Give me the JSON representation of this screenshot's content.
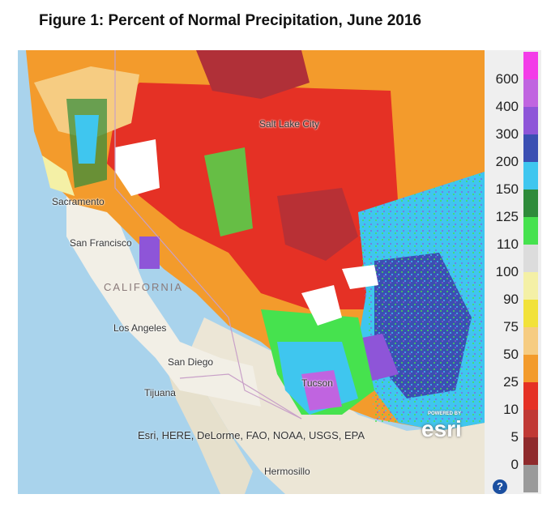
{
  "title": "Figure 1: Percent of Normal Precipitation, June 2016",
  "legend": {
    "ticks": [
      "600",
      "400",
      "300",
      "200",
      "150",
      "125",
      "110",
      "100",
      "90",
      "75",
      "50",
      "25",
      "10",
      "5",
      "0"
    ],
    "colors": [
      "#f33ce8",
      "#c064e0",
      "#8e55d8",
      "#3b4fb2",
      "#3fc6ef",
      "#2e8b3a",
      "#46e24e",
      "#dcdcdc",
      "#f4f0a6",
      "#f2e23a",
      "#f6cc82",
      "#f39b2c",
      "#e53125",
      "#c03935",
      "#8f2b2d",
      "#9a9a9a"
    ]
  },
  "map": {
    "cities": [
      "Sacramento",
      "San Francisco",
      "Los Angeles",
      "San Diego",
      "Tijuana",
      "Hermosillo",
      "Salt Lake City",
      "Tucson"
    ],
    "state_label": "CALIFORNIA",
    "attribution": "Esri, HERE, DeLorme, FAO, NOAA, USGS, EPA",
    "logo": "esri",
    "logo_tagline": "POWERED BY"
  },
  "help_glyph": "?"
}
